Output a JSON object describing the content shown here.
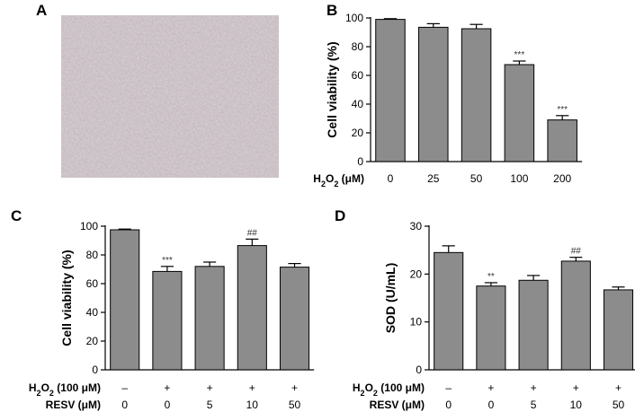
{
  "figure": {
    "panels": [
      "A",
      "B",
      "C",
      "D"
    ],
    "micrograph": {
      "bg_color": "#b5a7ae"
    }
  },
  "chart_data": [
    {
      "panel": "B",
      "type": "bar",
      "categories": [
        "0",
        "25",
        "50",
        "100",
        "200"
      ],
      "values": [
        99,
        93.5,
        92.5,
        67.5,
        29
      ],
      "errors": [
        0.5,
        2.5,
        3,
        2.5,
        3
      ],
      "annotations": [
        "",
        "",
        "",
        "***",
        "***"
      ],
      "ylabel": "Cell viability (%)",
      "xlabel_rows": [
        {
          "label": "H2O2 (μM)",
          "values": [
            "0",
            "25",
            "50",
            "100",
            "200"
          ]
        }
      ],
      "ylim": [
        0,
        100
      ],
      "yticks": [
        0,
        20,
        40,
        60,
        80,
        100
      ],
      "bar_color": "#8c8c8c"
    },
    {
      "panel": "C",
      "type": "bar",
      "categories": [
        "0",
        "0",
        "5",
        "10",
        "50"
      ],
      "values": [
        97.5,
        68.5,
        72,
        86.5,
        71.5
      ],
      "errors": [
        0.5,
        3.5,
        3,
        4.5,
        2.5
      ],
      "annotations": [
        "",
        "***",
        "",
        "##",
        ""
      ],
      "ylabel": "Cell viability (%)",
      "xlabel_rows": [
        {
          "label": "H2O2 (100 μM)",
          "values": [
            "–",
            "+",
            "+",
            "+",
            "+"
          ]
        },
        {
          "label": "RESV (μM)",
          "values": [
            "0",
            "0",
            "5",
            "10",
            "50"
          ]
        }
      ],
      "ylim": [
        0,
        100
      ],
      "yticks": [
        0,
        20,
        40,
        60,
        80,
        100
      ],
      "bar_color": "#8c8c8c"
    },
    {
      "panel": "D",
      "type": "bar",
      "categories": [
        "0",
        "0",
        "5",
        "10",
        "50"
      ],
      "values": [
        24.5,
        17.5,
        18.7,
        22.7,
        16.7
      ],
      "errors": [
        1.4,
        0.7,
        1,
        0.8,
        0.6
      ],
      "annotations": [
        "",
        "**",
        "",
        "##",
        ""
      ],
      "ylabel": "SOD (U/mL)",
      "xlabel_rows": [
        {
          "label": "H2O2 (100 μM)",
          "values": [
            "–",
            "+",
            "+",
            "+",
            "+"
          ]
        },
        {
          "label": "RESV (μM)",
          "values": [
            "0",
            "0",
            "5",
            "10",
            "50"
          ]
        }
      ],
      "ylim": [
        0,
        30
      ],
      "yticks": [
        0,
        10,
        20,
        30
      ],
      "bar_color": "#8c8c8c"
    }
  ]
}
